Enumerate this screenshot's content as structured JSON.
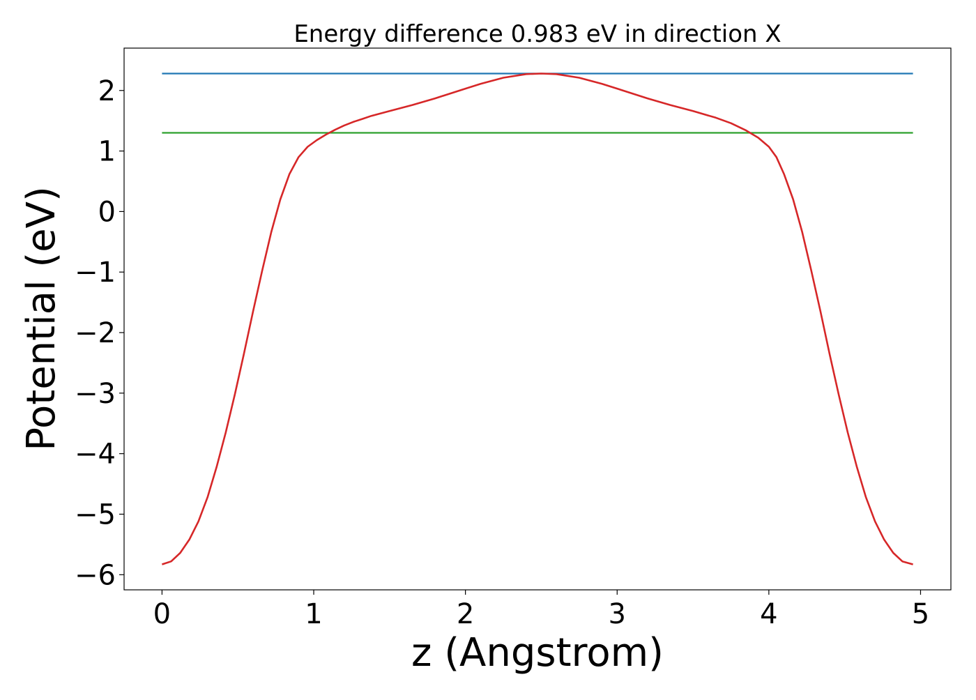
{
  "chart_data": {
    "type": "line",
    "title": "Energy difference 0.983 eV in direction X",
    "xlabel": "z (Angstrom)",
    "ylabel": "Potential (eV)",
    "xlim": [
      -0.25,
      5.2
    ],
    "ylim": [
      -6.25,
      2.7
    ],
    "xticks": [
      0,
      1,
      2,
      3,
      4,
      5
    ],
    "xtick_labels": [
      "0",
      "1",
      "2",
      "3",
      "4",
      "5"
    ],
    "yticks": [
      2,
      1,
      0,
      -1,
      -2,
      -3,
      -4,
      -5,
      -6
    ],
    "ytick_labels": [
      "2",
      "1",
      "0",
      "−1",
      "−2",
      "−3",
      "−4",
      "−5",
      "−6"
    ],
    "grid": false,
    "series": [
      {
        "color": "#1f77b4",
        "x": [
          0,
          4.95
        ],
        "y": [
          2.28,
          2.28
        ]
      },
      {
        "color": "#2ca02c",
        "x": [
          0,
          4.95
        ],
        "y": [
          1.3,
          1.3
        ]
      },
      {
        "color": "#d62728",
        "x": [
          0,
          0.06,
          0.12,
          0.18,
          0.24,
          0.3,
          0.36,
          0.42,
          0.48,
          0.54,
          0.6,
          0.66,
          0.72,
          0.78,
          0.84,
          0.9,
          0.96,
          1.02,
          1.08,
          1.14,
          1.2,
          1.26,
          1.32,
          1.38,
          1.5,
          1.65,
          1.8,
          1.95,
          2.1,
          2.25,
          2.4,
          2.5,
          2.6,
          2.75,
          2.9,
          3.05,
          3.2,
          3.35,
          3.5,
          3.65,
          3.75,
          3.85,
          3.93,
          4.0,
          4.05,
          4.1,
          4.16,
          4.22,
          4.28,
          4.34,
          4.4,
          4.46,
          4.52,
          4.58,
          4.64,
          4.7,
          4.76,
          4.82,
          4.88,
          4.95
        ],
        "y": [
          -5.83,
          -5.78,
          -5.64,
          -5.42,
          -5.12,
          -4.72,
          -4.22,
          -3.65,
          -3.02,
          -2.35,
          -1.65,
          -0.98,
          -0.34,
          0.2,
          0.62,
          0.9,
          1.07,
          1.18,
          1.27,
          1.35,
          1.42,
          1.48,
          1.53,
          1.58,
          1.66,
          1.76,
          1.87,
          1.99,
          2.11,
          2.21,
          2.27,
          2.28,
          2.27,
          2.21,
          2.11,
          1.99,
          1.87,
          1.76,
          1.66,
          1.55,
          1.46,
          1.34,
          1.22,
          1.07,
          0.9,
          0.62,
          0.2,
          -0.34,
          -0.98,
          -1.65,
          -2.35,
          -3.02,
          -3.65,
          -4.22,
          -4.72,
          -5.12,
          -5.42,
          -5.64,
          -5.78,
          -5.83
        ]
      }
    ]
  }
}
